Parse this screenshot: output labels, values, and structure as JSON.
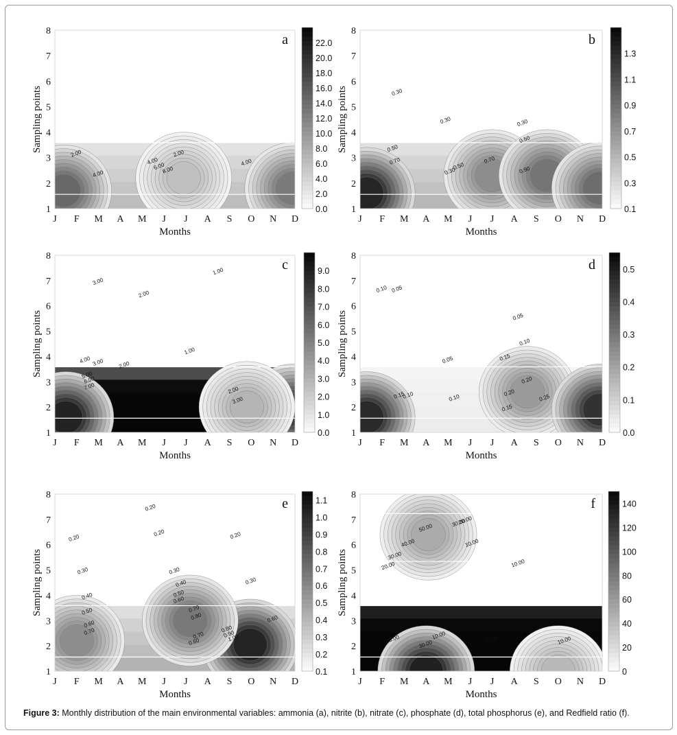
{
  "figure": {
    "caption_label": "Figure 3:",
    "caption_text": " Monthly distribution of the main environmental variables: ammonia (a), nitrite (b), nitrate (c), phosphate (d), total phosphorus (e), and Redfield ratio (f)."
  },
  "chart_data": [
    {
      "type": "heatmap",
      "panel_label": "a",
      "xlabel": "Months",
      "ylabel": "Sampling points",
      "x_categories": [
        "J",
        "F",
        "M",
        "A",
        "M",
        "J",
        "J",
        "A",
        "S",
        "O",
        "N",
        "D"
      ],
      "y_ticks": [
        1,
        2,
        3,
        4,
        5,
        6,
        7,
        8
      ],
      "colorbar_ticks": [
        "22.0",
        "20.0",
        "18.0",
        "16.0",
        "14.0",
        "12.0",
        "10.0",
        "8.0",
        "6.0",
        "4.0",
        "2.0",
        "0.0"
      ],
      "colorbar_range": [
        0,
        24
      ],
      "colorbar_style": "full",
      "contour_labels": [
        {
          "text": "2.00",
          "month": 2,
          "point": 3.1
        },
        {
          "text": "4.00",
          "month": 3,
          "point": 2.3
        },
        {
          "text": "4.00",
          "month": 5.5,
          "point": 2.8
        },
        {
          "text": "6.00",
          "month": 5.8,
          "point": 2.6
        },
        {
          "text": "8.00",
          "month": 6.2,
          "point": 2.45
        },
        {
          "text": "2.00",
          "month": 6.7,
          "point": 3.1
        },
        {
          "text": "4.00",
          "month": 9.8,
          "point": 2.75
        }
      ],
      "blobs": [
        {
          "month": 1.4,
          "point": 1.7,
          "peak": 16
        },
        {
          "month": 6.9,
          "point": 2.2,
          "peak": 6.5
        },
        {
          "month": 11.9,
          "point": 1.8,
          "peak": 14
        }
      ],
      "base": 0.3
    },
    {
      "type": "heatmap",
      "panel_label": "b",
      "xlabel": "Months",
      "ylabel": "Sampling points",
      "x_categories": [
        "J",
        "F",
        "M",
        "A",
        "M",
        "J",
        "J",
        "A",
        "S",
        "O",
        "N",
        "D"
      ],
      "y_ticks": [
        1,
        2,
        3,
        4,
        5,
        6,
        7,
        8
      ],
      "colorbar_ticks": [
        "1.3",
        "1.1",
        "0.9",
        "0.7",
        "0.5",
        "0.3",
        "0.1"
      ],
      "colorbar_range": [
        0.1,
        1.5
      ],
      "colorbar_style": "steps",
      "contour_labels": [
        {
          "text": "0.30",
          "month": 2.7,
          "point": 5.5
        },
        {
          "text": "0.30",
          "month": 4.9,
          "point": 4.4
        },
        {
          "text": "0.30",
          "month": 8.4,
          "point": 4.3
        },
        {
          "text": "0.50",
          "month": 2.5,
          "point": 3.3
        },
        {
          "text": "0.50",
          "month": 8.5,
          "point": 3.65
        },
        {
          "text": "0.70",
          "month": 2.6,
          "point": 2.8
        },
        {
          "text": "0.70",
          "month": 6.9,
          "point": 2.85
        },
        {
          "text": "0.30",
          "month": 5.1,
          "point": 2.4
        },
        {
          "text": "0.50",
          "month": 5.5,
          "point": 2.6
        },
        {
          "text": "0.90",
          "month": 8.5,
          "point": 2.45
        }
      ],
      "blobs": [
        {
          "month": 1.3,
          "point": 1.6,
          "peak": 1.45
        },
        {
          "month": 7.0,
          "point": 2.3,
          "peak": 0.8
        },
        {
          "month": 9.5,
          "point": 2.3,
          "peak": 0.95
        },
        {
          "month": 11.9,
          "point": 1.8,
          "peak": 1.0
        }
      ],
      "base": 0.32
    },
    {
      "type": "heatmap",
      "panel_label": "c",
      "xlabel": "Months",
      "ylabel": "Sampling points",
      "x_categories": [
        "J",
        "F",
        "M",
        "A",
        "M",
        "J",
        "J",
        "A",
        "S",
        "O",
        "N",
        "D"
      ],
      "y_ticks": [
        1,
        2,
        3,
        4,
        5,
        6,
        7,
        8
      ],
      "colorbar_ticks": [
        "9.0",
        "8.0",
        "7.0",
        "6.0",
        "5.0",
        "4.0",
        "3.0",
        "2.0",
        "1.0",
        "0.0"
      ],
      "colorbar_range": [
        0,
        10
      ],
      "colorbar_style": "steps",
      "contour_labels": [
        {
          "text": "3.00",
          "month": 3.0,
          "point": 6.9
        },
        {
          "text": "2.00",
          "month": 5.1,
          "point": 6.4
        },
        {
          "text": "1.00",
          "month": 8.5,
          "point": 7.3
        },
        {
          "text": "1.00",
          "month": 7.2,
          "point": 4.15
        },
        {
          "text": "4.00",
          "month": 2.4,
          "point": 3.8
        },
        {
          "text": "3.00",
          "month": 3.0,
          "point": 3.7
        },
        {
          "text": "2.00",
          "month": 4.2,
          "point": 3.6
        },
        {
          "text": "5.00",
          "month": 2.5,
          "point": 3.2
        },
        {
          "text": "6.00",
          "month": 2.6,
          "point": 3.0
        },
        {
          "text": "7.00",
          "month": 2.6,
          "point": 2.75
        },
        {
          "text": "2.00",
          "month": 9.2,
          "point": 2.6
        },
        {
          "text": "3.00",
          "month": 9.4,
          "point": 2.2
        }
      ],
      "blobs": [
        {
          "month": 1.5,
          "point": 1.6,
          "peak": 9.8
        },
        {
          "month": 11.9,
          "point": 1.9,
          "peak": 8.5
        },
        {
          "month": 9.8,
          "point": 2.0,
          "peak": 3.2
        }
      ],
      "base": 2.0
    },
    {
      "type": "heatmap",
      "panel_label": "d",
      "xlabel": "Months",
      "ylabel": "Sampling points",
      "x_categories": [
        "J",
        "F",
        "M",
        "A",
        "M",
        "J",
        "J",
        "A",
        "S",
        "O",
        "N",
        "D"
      ],
      "y_ticks": [
        1,
        2,
        3,
        4,
        5,
        6,
        7,
        8
      ],
      "colorbar_ticks": [
        "0.5",
        "0.4",
        "0.3",
        "0.2",
        "0.1",
        "0.0"
      ],
      "colorbar_range": [
        0,
        0.55
      ],
      "colorbar_style": "steps",
      "contour_labels": [
        {
          "text": "0.10",
          "month": 2.0,
          "point": 6.6
        },
        {
          "text": "0.05",
          "month": 2.7,
          "point": 6.6
        },
        {
          "text": "0.05",
          "month": 8.2,
          "point": 5.5
        },
        {
          "text": "0.10",
          "month": 8.5,
          "point": 4.5
        },
        {
          "text": "0.05",
          "month": 5.0,
          "point": 3.8
        },
        {
          "text": "0.15",
          "month": 7.6,
          "point": 3.9
        },
        {
          "text": "0.20",
          "month": 8.6,
          "point": 3.0
        },
        {
          "text": "0.15",
          "month": 2.8,
          "point": 2.4
        },
        {
          "text": "0.10",
          "month": 3.2,
          "point": 2.4
        },
        {
          "text": "0.10",
          "month": 5.3,
          "point": 2.3
        },
        {
          "text": "0.20",
          "month": 7.8,
          "point": 2.5
        },
        {
          "text": "0.25",
          "month": 9.4,
          "point": 2.3
        },
        {
          "text": "0.15",
          "month": 7.7,
          "point": 1.9
        }
      ],
      "blobs": [
        {
          "month": 1.3,
          "point": 1.6,
          "peak": 0.52
        },
        {
          "month": 8.6,
          "point": 2.6,
          "peak": 0.24
        },
        {
          "month": 11.9,
          "point": 1.9,
          "peak": 0.5
        }
      ],
      "base": 0.08
    },
    {
      "type": "heatmap",
      "panel_label": "e",
      "xlabel": "Months",
      "ylabel": "Sampling points",
      "x_categories": [
        "J",
        "F",
        "M",
        "A",
        "M",
        "J",
        "J",
        "A",
        "S",
        "O",
        "N",
        "D"
      ],
      "y_ticks": [
        1,
        2,
        3,
        4,
        5,
        6,
        7,
        8
      ],
      "colorbar_ticks": [
        "1.1",
        "1.0",
        "0.9",
        "0.8",
        "0.7",
        "0.6",
        "0.5",
        "0.4",
        "0.3",
        "0.2",
        "0.1"
      ],
      "colorbar_range": [
        0.1,
        1.15
      ],
      "colorbar_style": "steps",
      "contour_labels": [
        {
          "text": "0.20",
          "month": 5.4,
          "point": 7.4
        },
        {
          "text": "0.20",
          "month": 5.8,
          "point": 6.4
        },
        {
          "text": "0.20",
          "month": 1.9,
          "point": 6.2
        },
        {
          "text": "0.20",
          "month": 9.3,
          "point": 6.3
        },
        {
          "text": "0.30",
          "month": 2.3,
          "point": 4.9
        },
        {
          "text": "0.30",
          "month": 6.5,
          "point": 4.9
        },
        {
          "text": "0.40",
          "month": 6.8,
          "point": 4.4
        },
        {
          "text": "0.30",
          "month": 10.0,
          "point": 4.5
        },
        {
          "text": "0.50",
          "month": 6.7,
          "point": 4.0
        },
        {
          "text": "0.60",
          "month": 6.7,
          "point": 3.75
        },
        {
          "text": "0.40",
          "month": 2.5,
          "point": 3.9
        },
        {
          "text": "0.70",
          "month": 7.4,
          "point": 3.4
        },
        {
          "text": "0.80",
          "month": 7.5,
          "point": 3.1
        },
        {
          "text": "0.50",
          "month": 2.5,
          "point": 3.3
        },
        {
          "text": "0.60",
          "month": 2.6,
          "point": 2.8
        },
        {
          "text": "0.70",
          "month": 2.6,
          "point": 2.5
        },
        {
          "text": "0.80",
          "month": 8.9,
          "point": 2.6
        },
        {
          "text": "0.90",
          "month": 9.0,
          "point": 2.4
        },
        {
          "text": "1.00",
          "month": 9.2,
          "point": 2.25
        },
        {
          "text": "0.70",
          "month": 7.6,
          "point": 2.35
        },
        {
          "text": "0.60",
          "month": 7.4,
          "point": 2.1
        },
        {
          "text": "0.60",
          "month": 11.0,
          "point": 3.0
        }
      ],
      "blobs": [
        {
          "month": 9.95,
          "point": 2.05,
          "peak": 1.12
        },
        {
          "month": 7.2,
          "point": 3.0,
          "peak": 0.72
        },
        {
          "month": 2.0,
          "point": 2.2,
          "peak": 0.62
        }
      ],
      "base": 0.35
    },
    {
      "type": "heatmap",
      "panel_label": "f",
      "xlabel": "Months",
      "ylabel": "Sampling points",
      "x_categories": [
        "J",
        "F",
        "M",
        "A",
        "M",
        "J",
        "J",
        "A",
        "S",
        "O",
        "N",
        "D"
      ],
      "y_ticks": [
        1,
        2,
        3,
        4,
        5,
        6,
        7,
        8
      ],
      "colorbar_ticks": [
        "140",
        "120",
        "100",
        "80",
        "60",
        "40",
        "20",
        "0"
      ],
      "colorbar_range": [
        0,
        150
      ],
      "colorbar_style": "steps",
      "contour_labels": [
        {
          "text": "50.00",
          "month": 4.0,
          "point": 6.6
        },
        {
          "text": "40.00",
          "month": 3.2,
          "point": 6.0
        },
        {
          "text": "30.00",
          "month": 2.6,
          "point": 5.5
        },
        {
          "text": "20.00",
          "month": 2.3,
          "point": 5.1
        },
        {
          "text": "30.00",
          "month": 5.5,
          "point": 6.8
        },
        {
          "text": "20.00",
          "month": 5.8,
          "point": 6.9
        },
        {
          "text": "10.00",
          "month": 6.1,
          "point": 6.0
        },
        {
          "text": "10.00",
          "month": 8.2,
          "point": 5.2
        },
        {
          "text": "20.00",
          "month": 2.5,
          "point": 2.2
        },
        {
          "text": "30.00",
          "month": 4.0,
          "point": 2.0
        },
        {
          "text": "10.00",
          "month": 4.6,
          "point": 2.35
        },
        {
          "text": "20.00",
          "month": 7.0,
          "point": 2.2
        },
        {
          "text": "10.00",
          "month": 10.3,
          "point": 2.15
        }
      ],
      "blobs": [
        {
          "month": 4.0,
          "point": 1.0,
          "peak": 148
        },
        {
          "month": 4.1,
          "point": 6.4,
          "peak": 55
        },
        {
          "month": 10.0,
          "point": 1.0,
          "peak": 45
        }
      ],
      "base": 5
    }
  ]
}
